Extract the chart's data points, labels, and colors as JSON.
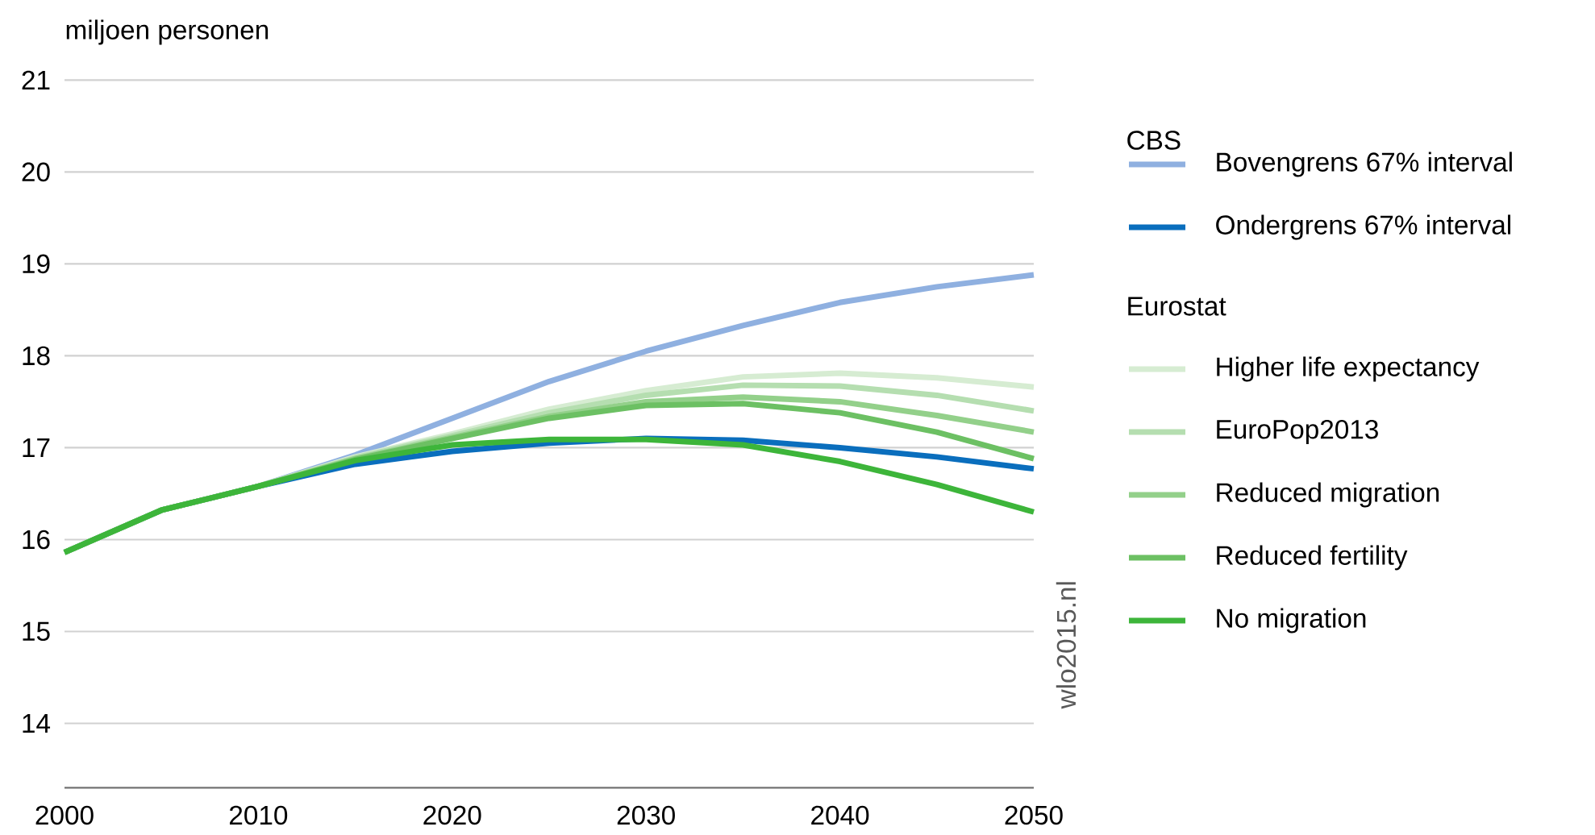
{
  "chart_data": {
    "type": "line",
    "ylabel": "miljoen personen",
    "legend_title": "CBS",
    "x": [
      2000,
      2005,
      2010,
      2015,
      2020,
      2025,
      2030,
      2035,
      2040,
      2045,
      2050
    ],
    "series": [
      {
        "name": "Bovengrens 67% interval",
        "color": "#8fb0e0",
        "values": [
          15.86,
          16.32,
          16.58,
          16.92,
          17.32,
          17.72,
          18.05,
          18.33,
          18.58,
          18.75,
          18.88
        ]
      },
      {
        "name": "Ondergrens 67% interval",
        "color": "#0a6ebd",
        "values": [
          15.86,
          16.32,
          16.58,
          16.82,
          16.96,
          17.05,
          17.1,
          17.08,
          17.0,
          16.9,
          16.77
        ]
      },
      {
        "name": "Higher life expectancy",
        "color": "#d6ecd2",
        "values": [
          15.86,
          16.32,
          16.58,
          16.9,
          17.15,
          17.42,
          17.62,
          17.77,
          17.81,
          17.76,
          17.66
        ]
      },
      {
        "name": "EuroPop2013",
        "color": "#b5deb0",
        "values": [
          15.86,
          16.32,
          16.58,
          16.89,
          17.13,
          17.38,
          17.57,
          17.68,
          17.67,
          17.57,
          17.4
        ]
      },
      {
        "name": "Reduced migration",
        "color": "#93d08a",
        "values": [
          15.86,
          16.32,
          16.58,
          16.88,
          17.11,
          17.34,
          17.5,
          17.55,
          17.5,
          17.35,
          17.17
        ]
      },
      {
        "name": "Reduced fertility",
        "color": "#6cc063",
        "values": [
          15.86,
          16.32,
          16.58,
          16.87,
          17.1,
          17.32,
          17.46,
          17.48,
          17.38,
          17.17,
          16.88
        ]
      },
      {
        "name": "No migration",
        "color": "#3db53a",
        "values": [
          15.86,
          16.32,
          16.58,
          16.86,
          17.03,
          17.09,
          17.09,
          17.03,
          16.85,
          16.6,
          16.3
        ]
      }
    ],
    "xlim": [
      2000,
      2050
    ],
    "xticks": [
      2000,
      2010,
      2020,
      2030,
      2040,
      2050
    ],
    "ylim": [
      13.3,
      21
    ],
    "yticks": [
      14,
      15,
      16,
      17,
      18,
      19,
      20,
      21
    ],
    "grid": "y",
    "legend": "right",
    "annotations": [
      "Eurostat",
      "wlo2015.nl"
    ]
  }
}
